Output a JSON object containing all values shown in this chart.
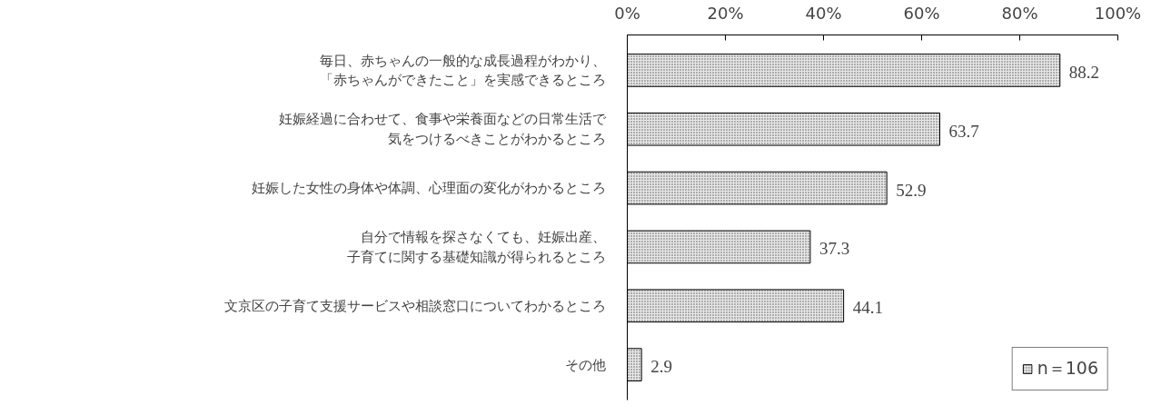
{
  "chart_data": {
    "type": "bar",
    "orientation": "horizontal",
    "categories": [
      "毎日、赤ちゃんの一般的な成長過程がわかり、「赤ちゃんができたこと」を実感できるところ",
      "妊娠経過に合わせて、食事や栄養面などの日常生活で気をつけるべきことがわかるところ",
      "妊娠した女性の身体や体調、心理面の変化がわかるところ",
      "自分で情報を探さなくても、妊娠出産、子育てに関する基礎知識が得られるところ",
      "文京区の子育て支援サービスや相談窓口についてわかるところ",
      "その他"
    ],
    "series": [
      {
        "name": "n＝106",
        "color": "#e8e8e8",
        "values": [
          88.2,
          63.7,
          52.9,
          37.3,
          44.1,
          2.9
        ]
      }
    ],
    "xlim": [
      0,
      100
    ],
    "xticks": [
      {
        "value": 0,
        "label": "0%"
      },
      {
        "value": 20,
        "label": "20%"
      },
      {
        "value": 40,
        "label": "40%"
      },
      {
        "value": 60,
        "label": "60%"
      },
      {
        "value": 80,
        "label": "80%"
      },
      {
        "value": 100,
        "label": "100%"
      }
    ],
    "data_labels": true,
    "grid": false,
    "legend": "bottom right"
  }
}
